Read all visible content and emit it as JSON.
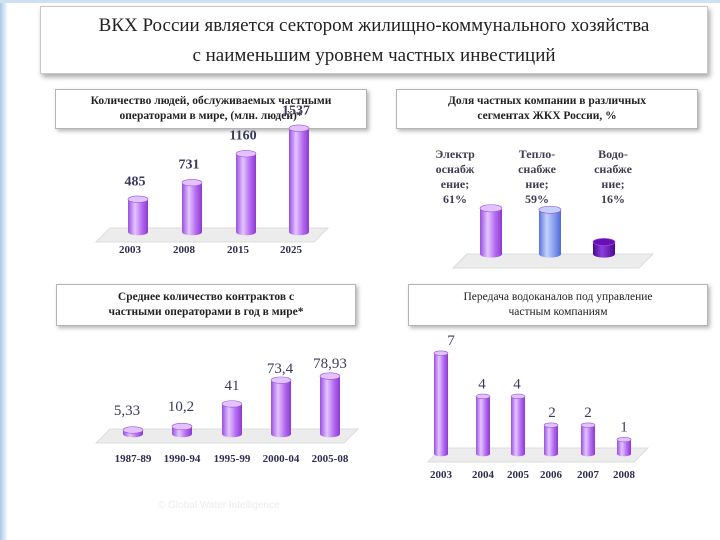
{
  "title": {
    "line1": "ВКХ России является сектором жилищно-коммунального хозяйства",
    "line2": "с наименьшим уровнем частных инвестиций"
  },
  "panels": {
    "people": {
      "line1": "Количество людей, обслуживаемых частными",
      "line2": "операторами в мире,  (млн. людей)*"
    },
    "share": {
      "line1": "Доля частных компании  в различных",
      "line2": "сегментах ЖКХ России,  %"
    },
    "contracts": {
      "line1": "Среднее количество контрактов  с",
      "line2": "частными операторами в год в мире*"
    },
    "transfer": {
      "line1": "Передача водоканалов под управление",
      "line2": "частным компаниям"
    }
  },
  "watermark": "© Global Water Intelligence",
  "colors": {
    "bar": "#b266ee",
    "bar_light": "#e2c2ff",
    "bar_dark": "#8c3fd0",
    "blue_bar": "#7f99ee",
    "dark_bar": "#6a0fb8",
    "floor": "#ebebeb"
  },
  "chart_data": [
    {
      "type": "bar",
      "id": "people",
      "categories": [
        "2003",
        "2008",
        "2015",
        "2025"
      ],
      "values": [
        485,
        731,
        1160,
        1537
      ],
      "value_labels": [
        "485",
        "731",
        "1160",
        "1537"
      ],
      "ylim": [
        0,
        1600
      ],
      "grid": false
    },
    {
      "type": "bar",
      "id": "share",
      "categories": [
        "Электр оснабж ение",
        "Тепло-снабже ние",
        "Водо-снабже ние"
      ],
      "category_lines": [
        [
          "Электр",
          "оснабж",
          "ение;",
          "61%"
        ],
        [
          "Тепло-",
          "снабже",
          "ние;",
          "59%"
        ],
        [
          "Водо-",
          "снабже",
          "ние;",
          "16%"
        ]
      ],
      "values": [
        61,
        59,
        16
      ],
      "ylim": [
        0,
        100
      ],
      "grid": false
    },
    {
      "type": "bar",
      "id": "contracts",
      "categories": [
        "1987-89",
        "1990-94",
        "1995-99",
        "2000-04",
        "2005-08"
      ],
      "values": [
        5.33,
        10.2,
        41,
        73.4,
        78.93
      ],
      "value_labels": [
        "5,33",
        "10,2",
        "41",
        "73,4",
        "78,93"
      ],
      "ylim": [
        0,
        90
      ],
      "grid": false
    },
    {
      "type": "bar",
      "id": "transfer",
      "categories": [
        "2003",
        "2004",
        "2005",
        "2006",
        "2007",
        "2008"
      ],
      "values": [
        7,
        4,
        4,
        2,
        2,
        1
      ],
      "value_labels": [
        "7",
        "4",
        "4",
        "2",
        "2",
        "1"
      ],
      "ylim": [
        0,
        7.5
      ],
      "grid": false
    }
  ]
}
